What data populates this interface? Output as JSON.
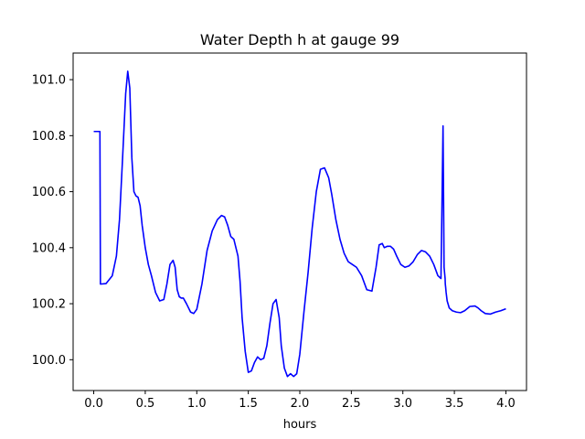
{
  "chart_data": {
    "type": "line",
    "title": "Water Depth h at gauge 99",
    "xlabel": "hours",
    "ylabel": "",
    "xlim": [
      -0.2,
      4.2
    ],
    "ylim": [
      99.89,
      101.095
    ],
    "xticks": [
      0.0,
      0.5,
      1.0,
      1.5,
      2.0,
      2.5,
      3.0,
      3.5,
      4.0
    ],
    "xtick_labels": [
      "0.0",
      "0.5",
      "1.0",
      "1.5",
      "2.0",
      "2.5",
      "3.0",
      "3.5",
      "4.0"
    ],
    "yticks": [
      100.0,
      100.2,
      100.4,
      100.6,
      100.8,
      101.0
    ],
    "ytick_labels": [
      "100.0",
      "100.2",
      "100.4",
      "100.6",
      "100.8",
      "101.0"
    ],
    "grid": false,
    "series": [
      {
        "color": "#0000ff",
        "x": [
          0.0,
          0.06,
          0.065,
          0.12,
          0.18,
          0.22,
          0.25,
          0.28,
          0.31,
          0.33,
          0.35,
          0.37,
          0.39,
          0.41,
          0.43,
          0.45,
          0.47,
          0.5,
          0.53,
          0.56,
          0.6,
          0.64,
          0.68,
          0.71,
          0.74,
          0.77,
          0.79,
          0.81,
          0.83,
          0.85,
          0.87,
          0.9,
          0.94,
          0.97,
          1.0,
          1.05,
          1.1,
          1.15,
          1.2,
          1.24,
          1.27,
          1.3,
          1.33,
          1.36,
          1.4,
          1.42,
          1.44,
          1.47,
          1.5,
          1.53,
          1.56,
          1.59,
          1.62,
          1.65,
          1.68,
          1.71,
          1.74,
          1.77,
          1.8,
          1.82,
          1.85,
          1.88,
          1.91,
          1.94,
          1.97,
          2.0,
          2.04,
          2.08,
          2.12,
          2.16,
          2.2,
          2.24,
          2.28,
          2.31,
          2.35,
          2.39,
          2.43,
          2.47,
          2.51,
          2.55,
          2.6,
          2.65,
          2.7,
          2.74,
          2.77,
          2.8,
          2.82,
          2.85,
          2.88,
          2.91,
          2.94,
          2.98,
          3.02,
          3.06,
          3.1,
          3.14,
          3.18,
          3.22,
          3.26,
          3.3,
          3.34,
          3.37,
          3.39,
          3.4,
          3.41,
          3.412,
          3.415,
          3.42,
          3.43,
          3.45,
          3.48,
          3.52,
          3.56,
          3.6,
          3.65,
          3.7,
          3.73,
          3.76,
          3.8,
          3.85,
          3.9,
          3.95,
          4.0
        ],
        "y": [
          100.815,
          100.815,
          100.27,
          100.272,
          100.3,
          100.37,
          100.5,
          100.72,
          100.95,
          101.03,
          100.97,
          100.72,
          100.6,
          100.585,
          100.58,
          100.55,
          100.48,
          100.4,
          100.34,
          100.3,
          100.24,
          100.21,
          100.215,
          100.27,
          100.34,
          100.355,
          100.33,
          100.25,
          100.225,
          100.22,
          100.22,
          100.2,
          100.17,
          100.165,
          100.18,
          100.27,
          100.39,
          100.46,
          100.5,
          100.515,
          100.51,
          100.48,
          100.44,
          100.43,
          100.37,
          100.28,
          100.15,
          100.03,
          99.955,
          99.96,
          99.99,
          100.01,
          100.0,
          100.005,
          100.05,
          100.13,
          100.2,
          100.215,
          100.15,
          100.05,
          99.97,
          99.94,
          99.95,
          99.94,
          99.95,
          100.02,
          100.17,
          100.31,
          100.47,
          100.6,
          100.68,
          100.685,
          100.65,
          100.59,
          100.5,
          100.43,
          100.38,
          100.35,
          100.34,
          100.33,
          100.3,
          100.25,
          100.245,
          100.33,
          100.41,
          100.415,
          100.4,
          100.405,
          100.405,
          100.395,
          100.37,
          100.34,
          100.33,
          100.335,
          100.35,
          100.375,
          100.39,
          100.385,
          100.37,
          100.34,
          100.3,
          100.29,
          100.835,
          100.33,
          100.29,
          100.27,
          100.26,
          100.24,
          100.21,
          100.185,
          100.175,
          100.17,
          100.168,
          100.175,
          100.19,
          100.192,
          100.185,
          100.175,
          100.165,
          100.163,
          100.17,
          100.175,
          100.182
        ]
      }
    ]
  }
}
